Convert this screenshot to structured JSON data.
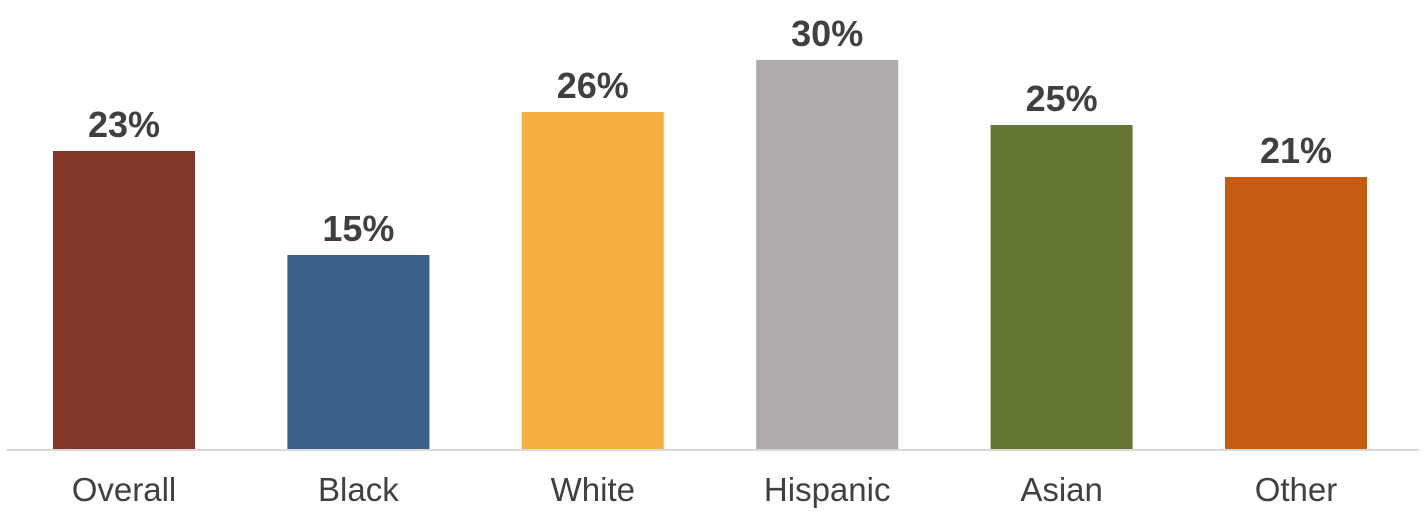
{
  "chart_data": {
    "type": "bar",
    "categories": [
      "Overall",
      "Black",
      "White",
      "Hispanic",
      "Asian",
      "Other"
    ],
    "values": [
      23,
      15,
      26,
      30,
      25,
      21
    ],
    "value_labels": [
      "23%",
      "15%",
      "26%",
      "30%",
      "25%",
      "21%"
    ],
    "colors": [
      "#843829",
      "#3a5f8b",
      "#f6b042",
      "#afabaa",
      "#637632",
      "#c45c11"
    ],
    "title": "",
    "xlabel": "",
    "ylabel": "",
    "ylim": [
      0,
      30
    ],
    "grid": false,
    "legend": "none"
  }
}
